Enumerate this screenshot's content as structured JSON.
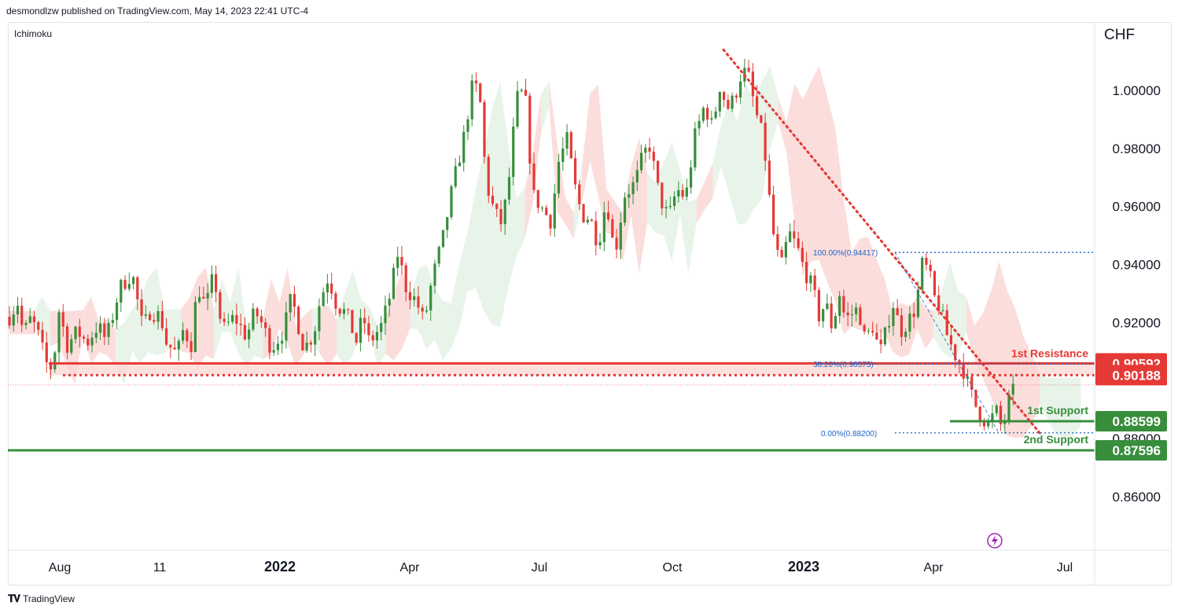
{
  "header": {
    "publisher_line": "desmondlzw published on TradingView.com, May 14, 2023 22:41 UTC-4"
  },
  "indicator": {
    "name": "Ichimoku"
  },
  "footer": {
    "brand": "TradingView",
    "logo_icon": "tradingview-logo-icon"
  },
  "colors": {
    "up": "#26a69a",
    "down": "#ef5350",
    "candle_up": "#388e3c",
    "candle_down": "#e53935",
    "resistance": "#e53935",
    "support": "#388e3c",
    "fib": "#1e63c8",
    "cloud_red": "#f8c3c0",
    "cloud_green": "#d5ebd7"
  },
  "chart_data": {
    "type": "candlestick",
    "title": "",
    "currency": "CHF",
    "ylim": [
      0.845,
      1.018
    ],
    "y_ticks": [
      "1.00000",
      "0.98000",
      "0.96000",
      "0.94000",
      "0.92000",
      "0.88000",
      "0.86000"
    ],
    "y_tick_values": [
      1.0,
      0.98,
      0.96,
      0.94,
      0.92,
      0.88,
      0.86
    ],
    "x_ticks": [
      {
        "label": "Aug",
        "bold": false
      },
      {
        "label": "11",
        "bold": false
      },
      {
        "label": "2022",
        "bold": true
      },
      {
        "label": "Apr",
        "bold": false
      },
      {
        "label": "Jul",
        "bold": false
      },
      {
        "label": "Oct",
        "bold": false
      },
      {
        "label": "2023",
        "bold": true
      },
      {
        "label": "Apr",
        "bold": false
      },
      {
        "label": "Jul",
        "bold": false
      }
    ],
    "price_path": [
      0.922,
      0.927,
      0.916,
      0.921,
      0.918,
      0.906,
      0.904,
      0.925,
      0.912,
      0.917,
      0.913,
      0.919,
      0.914,
      0.921,
      0.932,
      0.937,
      0.918,
      0.924,
      0.922,
      0.913,
      0.909,
      0.918,
      0.912,
      0.933,
      0.925,
      0.937,
      0.917,
      0.922,
      0.915,
      0.924,
      0.919,
      0.911,
      0.917,
      0.929,
      0.911,
      0.916,
      0.928,
      0.936,
      0.926,
      0.923,
      0.913,
      0.923,
      0.913,
      0.919,
      0.929,
      0.944,
      0.932,
      0.927,
      0.92,
      0.935,
      0.949,
      0.967,
      0.983,
      1.003,
      0.998,
      0.968,
      0.958,
      0.954,
      0.967,
      0.997,
      1.0,
      0.964,
      0.959,
      0.955,
      0.976,
      0.983,
      0.966,
      0.957,
      0.956,
      0.947,
      0.963,
      0.943,
      0.964,
      0.968,
      0.978,
      0.981,
      0.963,
      0.956,
      0.966,
      0.963,
      0.984,
      0.995,
      0.987,
      1.002,
      0.994,
      0.997,
      1.005,
      1.007,
      0.993,
      0.983,
      0.952,
      0.938,
      0.951,
      0.946,
      0.938,
      0.932,
      0.922,
      0.927,
      0.918,
      0.93,
      0.921,
      0.923,
      0.925,
      0.914,
      0.919,
      0.909,
      0.917,
      0.927,
      0.917,
      0.921,
      0.925,
      0.94,
      0.938,
      0.929,
      0.925,
      0.916,
      0.909,
      0.904,
      0.896,
      0.891,
      0.887,
      0.885,
      0.89,
      0.883,
      0.893,
      0.899
    ],
    "price_path_x": [
      0.0,
      0.01,
      0.017,
      0.025,
      0.033,
      0.045,
      0.053,
      0.061,
      0.07,
      0.083,
      0.095,
      0.108,
      0.118,
      0.125,
      0.135,
      0.15,
      0.163,
      0.172,
      0.185,
      0.192,
      0.205,
      0.213,
      0.222,
      0.23,
      0.24,
      0.25,
      0.26,
      0.275,
      0.29,
      0.3,
      0.31,
      0.32,
      0.335,
      0.345,
      0.36,
      0.372,
      0.38,
      0.39,
      0.4,
      0.412,
      0.425,
      0.432,
      0.44,
      0.455,
      0.465,
      0.475,
      0.485,
      0.498,
      0.507,
      0.517,
      0.53,
      0.542,
      0.555,
      0.567,
      0.575,
      0.583,
      0.593,
      0.602,
      0.61,
      0.62,
      0.63,
      0.64,
      0.652,
      0.662,
      0.672,
      0.682,
      0.692,
      0.7,
      0.71,
      0.72,
      0.73,
      0.74,
      0.752,
      0.765,
      0.775,
      0.783,
      0.795,
      0.806,
      0.816,
      0.827,
      0.838,
      0.85,
      0.86,
      0.868,
      0.878,
      0.886,
      0.894,
      0.902,
      0.912,
      0.922,
      0.933,
      0.943,
      0.953,
      0.963,
      0.972,
      0.982,
      0.99,
      0.998,
      1.006,
      1.015,
      1.022,
      1.03,
      1.038,
      1.046,
      1.056,
      1.064,
      1.072,
      1.08,
      1.09,
      1.1,
      1.108,
      1.116,
      1.124,
      1.13,
      1.138,
      1.146,
      1.156,
      1.166,
      1.175,
      1.182,
      1.19,
      1.198,
      1.206,
      1.214,
      1.222,
      1.232
    ],
    "x_date_range": [
      "Jul 2021",
      "May 2023"
    ],
    "levels": [
      {
        "name": "1st Resistance",
        "value": 0.90592,
        "label": "0.90592",
        "style": "solid",
        "color_key": "resistance"
      },
      {
        "name": "",
        "value": 0.90188,
        "label": "0.90188",
        "style": "dotted",
        "color_key": "resistance"
      },
      {
        "name": "1st Support",
        "value": 0.88599,
        "label": "0.88599",
        "style": "solid-short",
        "color_key": "support"
      },
      {
        "name": "2nd Support",
        "value": 0.87596,
        "label": "0.87596",
        "style": "solid",
        "color_key": "support"
      }
    ],
    "resistance_labels": {
      "first": "1st Resistance"
    },
    "support_labels": {
      "first": "1st Support",
      "second": "2nd Support"
    },
    "fibonacci": [
      {
        "label": "100.00%(0.94417)",
        "value": 0.94417
      },
      {
        "label": "38.20%(0.90575)",
        "value": 0.90575
      },
      {
        "label": "0.00%(0.88200)",
        "value": 0.882
      }
    ],
    "current_price": 0.8985,
    "trendline": {
      "from": {
        "date": "Nov 2022",
        "value": 1.014
      },
      "to": {
        "date": "Jun 2023",
        "value": 0.881
      }
    },
    "grid": false
  }
}
